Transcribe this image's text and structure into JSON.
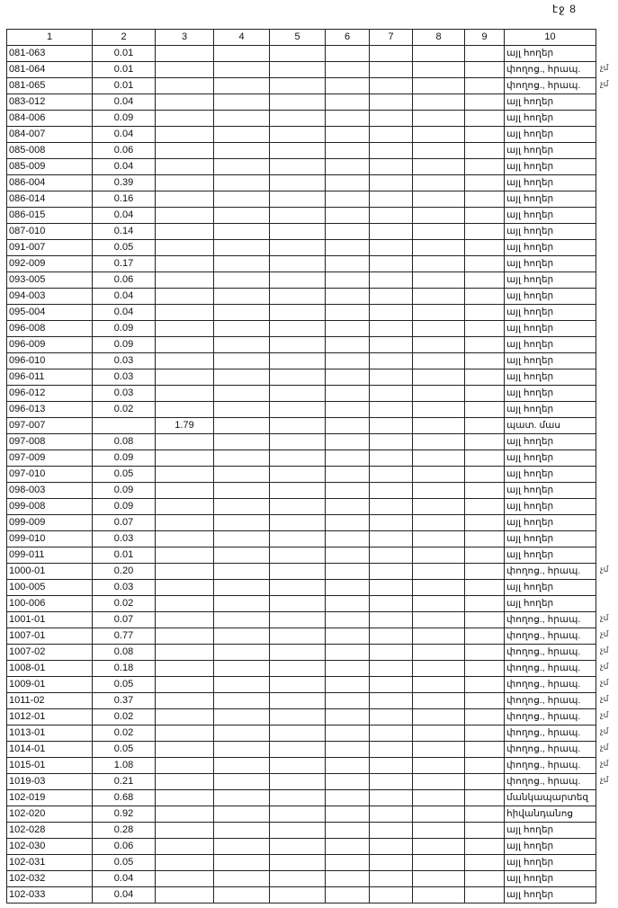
{
  "page_label": "էջ 8",
  "columns": [
    "1",
    "2",
    "3",
    "4",
    "5",
    "6",
    "7",
    "8",
    "9",
    "10"
  ],
  "rows": [
    {
      "c1": "081-063",
      "c2": "0.01",
      "c3": "",
      "c10": "այլ հողեր",
      "mark": ""
    },
    {
      "c1": "081-064",
      "c2": "0.01",
      "c3": "",
      "c10": "փողոց., հրապ.",
      "mark": "չմ"
    },
    {
      "c1": "081-065",
      "c2": "0.01",
      "c3": "",
      "c10": "փողոց., հրապ.",
      "mark": "չմ"
    },
    {
      "c1": "083-012",
      "c2": "0.04",
      "c3": "",
      "c10": "այլ հողեր",
      "mark": ""
    },
    {
      "c1": "084-006",
      "c2": "0.09",
      "c3": "",
      "c10": "այլ հողեր",
      "mark": ""
    },
    {
      "c1": "084-007",
      "c2": "0.04",
      "c3": "",
      "c10": "այլ հողեր",
      "mark": ""
    },
    {
      "c1": "085-008",
      "c2": "0.06",
      "c3": "",
      "c10": "այլ հողեր",
      "mark": ""
    },
    {
      "c1": "085-009",
      "c2": "0.04",
      "c3": "",
      "c10": "այլ հողեր",
      "mark": ""
    },
    {
      "c1": "086-004",
      "c2": "0.39",
      "c3": "",
      "c10": "այլ հողեր",
      "mark": ""
    },
    {
      "c1": "086-014",
      "c2": "0.16",
      "c3": "",
      "c10": "այլ հողեր",
      "mark": ""
    },
    {
      "c1": "086-015",
      "c2": "0.04",
      "c3": "",
      "c10": "այլ հողեր",
      "mark": ""
    },
    {
      "c1": "087-010",
      "c2": "0.14",
      "c3": "",
      "c10": "այլ հողեր",
      "mark": ""
    },
    {
      "c1": "091-007",
      "c2": "0.05",
      "c3": "",
      "c10": "այլ հողեր",
      "mark": ""
    },
    {
      "c1": "092-009",
      "c2": "0.17",
      "c3": "",
      "c10": "այլ հողեր",
      "mark": ""
    },
    {
      "c1": "093-005",
      "c2": "0.06",
      "c3": "",
      "c10": "այլ հողեր",
      "mark": ""
    },
    {
      "c1": "094-003",
      "c2": "0.04",
      "c3": "",
      "c10": "այլ հողեր",
      "mark": ""
    },
    {
      "c1": "095-004",
      "c2": "0.04",
      "c3": "",
      "c10": "այլ հողեր",
      "mark": ""
    },
    {
      "c1": "096-008",
      "c2": "0.09",
      "c3": "",
      "c10": "այլ հողեր",
      "mark": ""
    },
    {
      "c1": "096-009",
      "c2": "0.09",
      "c3": "",
      "c10": "այլ հողեր",
      "mark": ""
    },
    {
      "c1": "096-010",
      "c2": "0.03",
      "c3": "",
      "c10": "այլ հողեր",
      "mark": ""
    },
    {
      "c1": "096-011",
      "c2": "0.03",
      "c3": "",
      "c10": "այլ հողեր",
      "mark": ""
    },
    {
      "c1": "096-012",
      "c2": "0.03",
      "c3": "",
      "c10": "այլ հողեր",
      "mark": ""
    },
    {
      "c1": "096-013",
      "c2": "0.02",
      "c3": "",
      "c10": "այլ հողեր",
      "mark": ""
    },
    {
      "c1": "097-007",
      "c2": "",
      "c3": "1.79",
      "c10": "պատ. մաս",
      "mark": ""
    },
    {
      "c1": "097-008",
      "c2": "0.08",
      "c3": "",
      "c10": "այլ հողեր",
      "mark": ""
    },
    {
      "c1": "097-009",
      "c2": "0.09",
      "c3": "",
      "c10": "այլ հողեր",
      "mark": ""
    },
    {
      "c1": "097-010",
      "c2": "0.05",
      "c3": "",
      "c10": "այլ հողեր",
      "mark": ""
    },
    {
      "c1": "098-003",
      "c2": "0.09",
      "c3": "",
      "c10": "այլ հողեր",
      "mark": ""
    },
    {
      "c1": "099-008",
      "c2": "0.09",
      "c3": "",
      "c10": "այլ հողեր",
      "mark": ""
    },
    {
      "c1": "099-009",
      "c2": "0.07",
      "c3": "",
      "c10": "այլ հողեր",
      "mark": ""
    },
    {
      "c1": "099-010",
      "c2": "0.03",
      "c3": "",
      "c10": "այլ հողեր",
      "mark": ""
    },
    {
      "c1": "099-011",
      "c2": "0.01",
      "c3": "",
      "c10": "այլ հողեր",
      "mark": ""
    },
    {
      "c1": "1000-01",
      "c2": "0.20",
      "c3": "",
      "c10": "փողոց., հրապ.",
      "mark": "չմ"
    },
    {
      "c1": "100-005",
      "c2": "0.03",
      "c3": "",
      "c10": "այլ հողեր",
      "mark": ""
    },
    {
      "c1": "100-006",
      "c2": "0.02",
      "c3": "",
      "c10": "այլ հողեր",
      "mark": ""
    },
    {
      "c1": "1001-01",
      "c2": "0.07",
      "c3": "",
      "c10": "փողոց., հրապ.",
      "mark": "չմ"
    },
    {
      "c1": "1007-01",
      "c2": "0.77",
      "c3": "",
      "c10": "փողոց., հրապ.",
      "mark": "չմ"
    },
    {
      "c1": "1007-02",
      "c2": "0.08",
      "c3": "",
      "c10": "փողոց., հրապ.",
      "mark": "չմ"
    },
    {
      "c1": "1008-01",
      "c2": "0.18",
      "c3": "",
      "c10": "փողոց., հրապ.",
      "mark": "չմ"
    },
    {
      "c1": "1009-01",
      "c2": "0.05",
      "c3": "",
      "c10": "փողոց., հրապ.",
      "mark": "չմ"
    },
    {
      "c1": "1011-02",
      "c2": "0.37",
      "c3": "",
      "c10": "փողոց., հրապ.",
      "mark": "չմ"
    },
    {
      "c1": "1012-01",
      "c2": "0.02",
      "c3": "",
      "c10": "փողոց., հրապ.",
      "mark": "չմ"
    },
    {
      "c1": "1013-01",
      "c2": "0.02",
      "c3": "",
      "c10": "փողոց., հրապ.",
      "mark": "չմ"
    },
    {
      "c1": "1014-01",
      "c2": "0.05",
      "c3": "",
      "c10": "փողոց., հրապ.",
      "mark": "չմ"
    },
    {
      "c1": "1015-01",
      "c2": "1.08",
      "c3": "",
      "c10": "փողոց., հրապ.",
      "mark": "չմ"
    },
    {
      "c1": "1019-03",
      "c2": "0.21",
      "c3": "",
      "c10": "փողոց., հրապ.",
      "mark": "չմ"
    },
    {
      "c1": "102-019",
      "c2": "0.68",
      "c3": "",
      "c10": "մանկապարտեզ",
      "mark": ""
    },
    {
      "c1": "102-020",
      "c2": "0.92",
      "c3": "",
      "c10": "հիվանդանոց",
      "mark": ""
    },
    {
      "c1": "102-028",
      "c2": "0.28",
      "c3": "",
      "c10": "այլ հողեր",
      "mark": ""
    },
    {
      "c1": "102-030",
      "c2": "0.06",
      "c3": "",
      "c10": "այլ հողեր",
      "mark": ""
    },
    {
      "c1": "102-031",
      "c2": "0.05",
      "c3": "",
      "c10": "այլ հողեր",
      "mark": ""
    },
    {
      "c1": "102-032",
      "c2": "0.04",
      "c3": "",
      "c10": "այլ հողեր",
      "mark": ""
    },
    {
      "c1": "102-033",
      "c2": "0.04",
      "c3": "",
      "c10": "այլ հողեր",
      "mark": ""
    }
  ]
}
